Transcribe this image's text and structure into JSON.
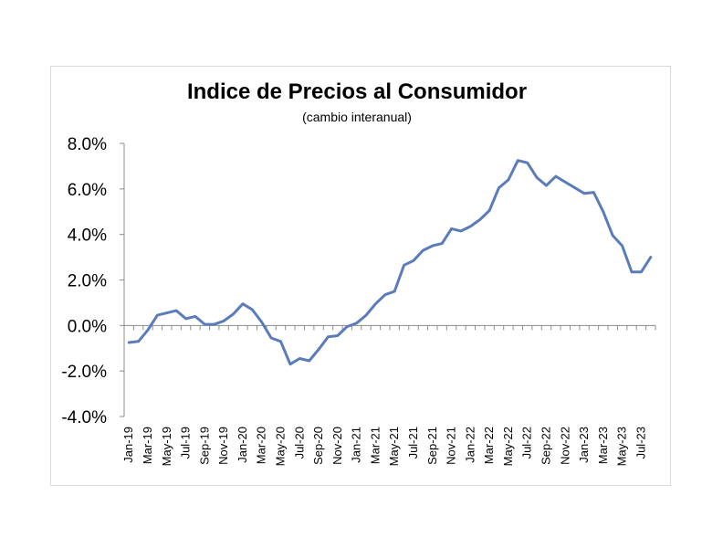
{
  "chart_data": {
    "type": "line",
    "title": "Indice de Precios al Consumidor",
    "subtitle": "(cambio interanual)",
    "xlabel": "",
    "ylabel": "",
    "ylim": [
      -4.0,
      8.0
    ],
    "yticks": [
      "8.0%",
      "6.0%",
      "4.0%",
      "2.0%",
      "0.0%",
      "-2.0%",
      "-4.0%"
    ],
    "ytick_values": [
      8.0,
      6.0,
      4.0,
      2.0,
      0.0,
      -2.0,
      -4.0
    ],
    "xtick_labels": [
      "Jan-19",
      "Mar-19",
      "May-19",
      "Jul-19",
      "Sep-19",
      "Nov-19",
      "Jan-20",
      "Mar-20",
      "May-20",
      "Jul-20",
      "Sep-20",
      "Nov-20",
      "Jan-21",
      "Mar-21",
      "May-21",
      "Jul-21",
      "Sep-21",
      "Nov-21",
      "Jan-22",
      "Mar-22",
      "May-22",
      "Jul-22",
      "Sep-22",
      "Nov-22",
      "Jan-23",
      "Mar-23",
      "May-23",
      "Jul-23"
    ],
    "grid": false,
    "legend": "none",
    "line_color": "#5b7cba",
    "x": [
      "Jan-19",
      "Feb-19",
      "Mar-19",
      "Apr-19",
      "May-19",
      "Jun-19",
      "Jul-19",
      "Aug-19",
      "Sep-19",
      "Oct-19",
      "Nov-19",
      "Dec-19",
      "Jan-20",
      "Feb-20",
      "Mar-20",
      "Apr-20",
      "May-20",
      "Jun-20",
      "Jul-20",
      "Aug-20",
      "Sep-20",
      "Oct-20",
      "Nov-20",
      "Dec-20",
      "Jan-21",
      "Feb-21",
      "Mar-21",
      "Apr-21",
      "May-21",
      "Jun-21",
      "Jul-21",
      "Aug-21",
      "Sep-21",
      "Oct-21",
      "Nov-21",
      "Dec-21",
      "Jan-22",
      "Feb-22",
      "Mar-22",
      "Apr-22",
      "May-22",
      "Jun-22",
      "Jul-22",
      "Aug-22",
      "Sep-22",
      "Oct-22",
      "Nov-22",
      "Dec-22",
      "Jan-23",
      "Feb-23",
      "Mar-23",
      "Apr-23",
      "May-23",
      "Jun-23",
      "Jul-23",
      "Aug-23"
    ],
    "series": [
      {
        "values": [
          -0.75,
          -0.7,
          -0.2,
          0.45,
          0.55,
          0.65,
          0.3,
          0.4,
          0.05,
          0.05,
          0.2,
          0.5,
          0.95,
          0.7,
          0.15,
          -0.55,
          -0.7,
          -1.7,
          -1.45,
          -1.55,
          -1.05,
          -0.5,
          -0.45,
          -0.05,
          0.1,
          0.45,
          0.95,
          1.35,
          1.5,
          2.65,
          2.85,
          3.3,
          3.5,
          3.6,
          4.25,
          4.15,
          4.35,
          4.65,
          5.05,
          6.05,
          6.4,
          7.25,
          7.15,
          6.5,
          6.15,
          6.55,
          6.3,
          6.05,
          5.8,
          5.85,
          5.0,
          3.95,
          3.5,
          2.35,
          2.35,
          3.0
        ]
      }
    ]
  }
}
